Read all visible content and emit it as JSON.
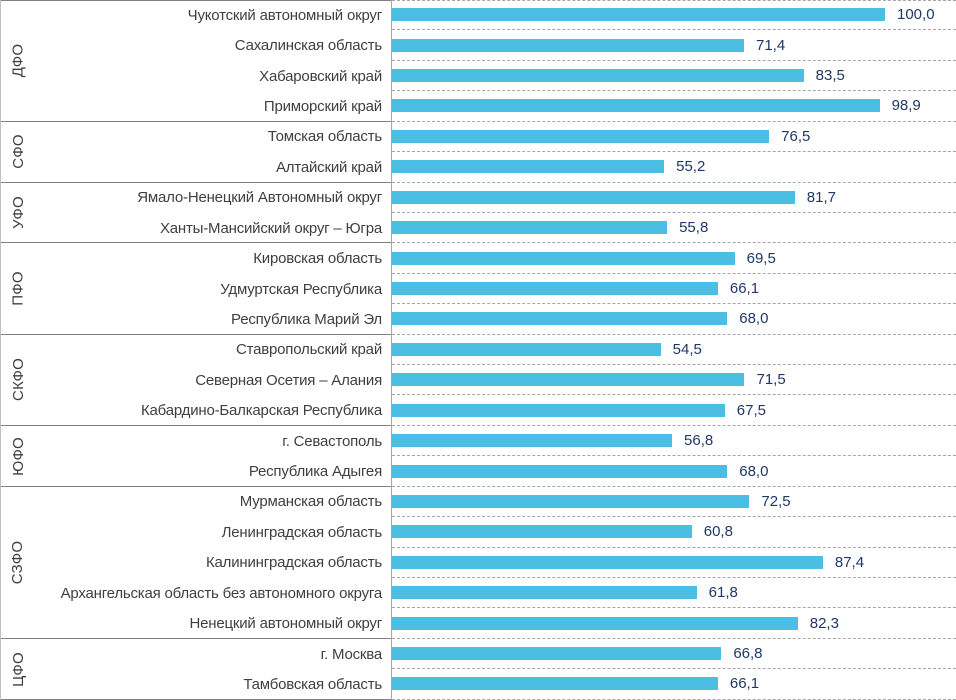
{
  "chart_data": {
    "type": "bar",
    "orientation": "horizontal",
    "title": "",
    "xlabel": "",
    "ylabel": "",
    "xlim": [
      0,
      100
    ],
    "grid": "dashed row separators",
    "legend": "none",
    "bar_color": "#4bbee3",
    "value_label_color": "#1f3864",
    "category_label_color": "#3f3f3f",
    "separator_solid_color": "#7f7f7f",
    "separator_dashed_color": "#a6a6a6",
    "groups": [
      {
        "name": "ДФО",
        "rows": [
          {
            "label": "Чукотский автономный округ",
            "value": 100.0,
            "value_label": "100,0"
          },
          {
            "label": "Сахалинская область",
            "value": 71.4,
            "value_label": "71,4"
          },
          {
            "label": "Хабаровский край",
            "value": 83.5,
            "value_label": "83,5"
          },
          {
            "label": "Приморский край",
            "value": 98.9,
            "value_label": "98,9"
          }
        ]
      },
      {
        "name": "СФО",
        "rows": [
          {
            "label": "Томская область",
            "value": 76.5,
            "value_label": "76,5"
          },
          {
            "label": "Алтайский край",
            "value": 55.2,
            "value_label": "55,2"
          }
        ]
      },
      {
        "name": "УФО",
        "rows": [
          {
            "label": "Ямало-Ненецкий Автономный округ",
            "value": 81.7,
            "value_label": "81,7"
          },
          {
            "label": "Ханты-Мансийский округ – Югра",
            "value": 55.8,
            "value_label": "55,8"
          }
        ]
      },
      {
        "name": "ПФО",
        "rows": [
          {
            "label": "Кировская область",
            "value": 69.5,
            "value_label": "69,5"
          },
          {
            "label": "Удмуртская Республика",
            "value": 66.1,
            "value_label": "66,1"
          },
          {
            "label": "Республика Марий Эл",
            "value": 68.0,
            "value_label": "68,0"
          }
        ]
      },
      {
        "name": "СКФО",
        "rows": [
          {
            "label": "Ставропольский край",
            "value": 54.5,
            "value_label": "54,5"
          },
          {
            "label": "Северная Осетия – Алания",
            "value": 71.5,
            "value_label": "71,5"
          },
          {
            "label": "Кабардино-Балкарская Республика",
            "value": 67.5,
            "value_label": "67,5"
          }
        ]
      },
      {
        "name": "ЮФО",
        "rows": [
          {
            "label": "г. Севастополь",
            "value": 56.8,
            "value_label": "56,8"
          },
          {
            "label": "Республика Адыгея",
            "value": 68.0,
            "value_label": "68,0"
          }
        ]
      },
      {
        "name": "СЗФО",
        "rows": [
          {
            "label": "Мурманская область",
            "value": 72.5,
            "value_label": "72,5"
          },
          {
            "label": "Ленинградская область",
            "value": 60.8,
            "value_label": "60,8"
          },
          {
            "label": "Калининградская область",
            "value": 87.4,
            "value_label": "87,4"
          },
          {
            "label": "Архангельская область без автономного округа",
            "value": 61.8,
            "value_label": "61,8"
          },
          {
            "label": "Ненецкий автономный округ",
            "value": 82.3,
            "value_label": "82,3"
          }
        ]
      },
      {
        "name": "ЦФО",
        "rows": [
          {
            "label": "г. Москва",
            "value": 66.8,
            "value_label": "66,8"
          },
          {
            "label": "Тамбовская область",
            "value": 66.1,
            "value_label": "66,1"
          }
        ]
      }
    ]
  }
}
